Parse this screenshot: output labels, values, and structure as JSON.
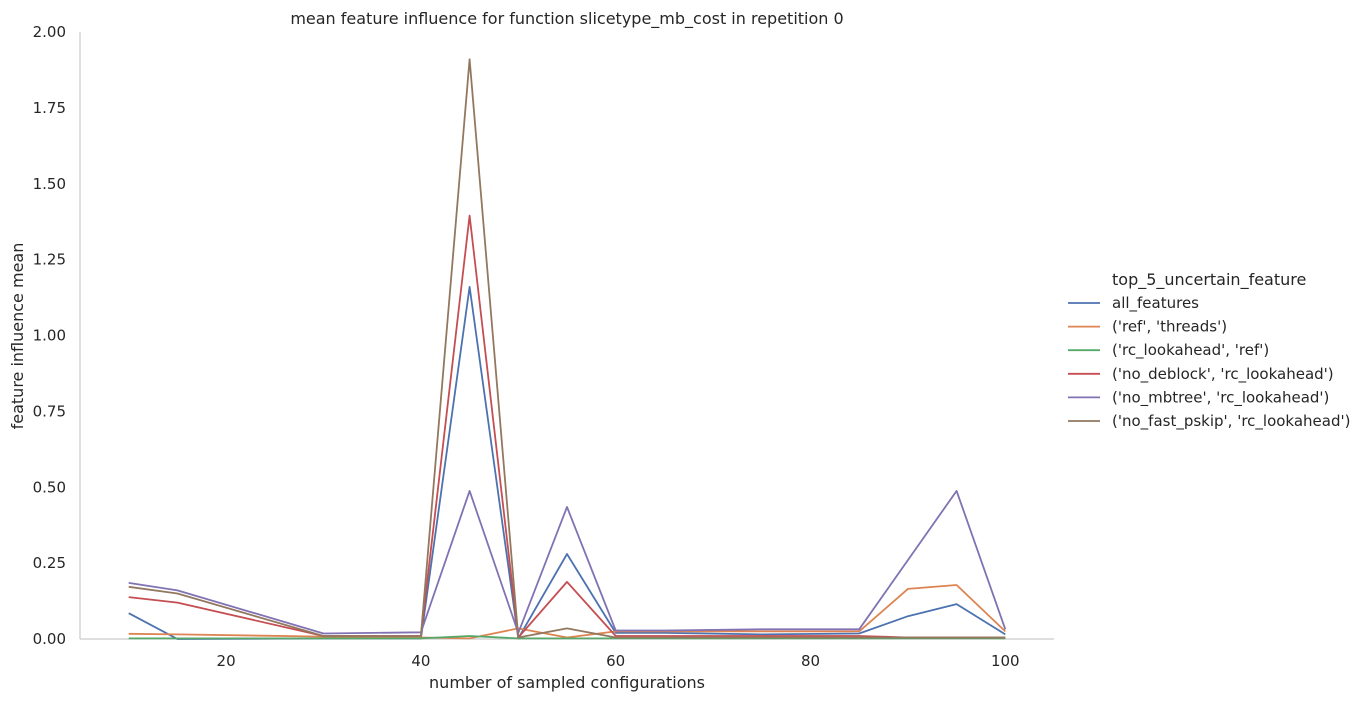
{
  "chart_data": {
    "type": "line",
    "title": "mean feature influence for function slicetype_mb_cost in repetition 0",
    "xlabel": "number of sampled configurations",
    "ylabel": "feature influence mean",
    "xlim": [
      5,
      105
    ],
    "ylim": [
      0,
      2
    ],
    "xticks": [
      "20",
      "40",
      "60",
      "80",
      "100"
    ],
    "xtick_values": [
      20,
      40,
      60,
      80,
      100
    ],
    "yticks": [
      "0.00",
      "0.25",
      "0.50",
      "0.75",
      "1.00",
      "1.25",
      "1.50",
      "1.75",
      "2.00"
    ],
    "ytick_values": [
      0,
      0.25,
      0.5,
      0.75,
      1.0,
      1.25,
      1.5,
      1.75,
      2.0
    ],
    "grid": false,
    "legend_title": "top_5_uncertain_feature",
    "legend_position": "right",
    "x": [
      10,
      15,
      30,
      40,
      45,
      50,
      55,
      60,
      65,
      75,
      85,
      90,
      95,
      100
    ],
    "series": [
      {
        "name": "all_features",
        "color": "#4c72b0",
        "values": [
          0.085,
          0.0,
          0.002,
          0.002,
          1.16,
          0.002,
          0.28,
          0.02,
          0.02,
          0.015,
          0.018,
          0.075,
          0.115,
          0.015
        ]
      },
      {
        "name": "('ref', 'threads')",
        "color": "#dd8452",
        "values": [
          0.017,
          0.015,
          0.008,
          0.005,
          0.002,
          0.035,
          0.005,
          0.025,
          0.025,
          0.025,
          0.025,
          0.165,
          0.178,
          0.025
        ]
      },
      {
        "name": "('rc_lookahead', 'ref')",
        "color": "#55a868",
        "values": [
          0.002,
          0.002,
          0.002,
          0.002,
          0.01,
          0.002,
          0.002,
          0.002,
          0.002,
          0.002,
          0.002,
          0.002,
          0.002,
          0.002
        ]
      },
      {
        "name": "('no_deblock', 'rc_lookahead')",
        "color": "#c44e52",
        "values": [
          0.138,
          0.12,
          0.01,
          0.01,
          1.395,
          0.005,
          0.188,
          0.01,
          0.01,
          0.01,
          0.01,
          0.005,
          0.005,
          0.005
        ]
      },
      {
        "name": "('no_mbtree', 'rc_lookahead')",
        "color": "#8172b3",
        "values": [
          0.185,
          0.16,
          0.018,
          0.022,
          0.488,
          0.02,
          0.435,
          0.028,
          0.028,
          0.032,
          0.032,
          0.26,
          0.488,
          0.032
        ]
      },
      {
        "name": "('no_fast_pskip', 'rc_lookahead')",
        "color": "#937860",
        "values": [
          0.172,
          0.15,
          0.01,
          0.01,
          1.91,
          0.005,
          0.035,
          0.005,
          0.005,
          0.005,
          0.005,
          0.005,
          0.005,
          0.005
        ]
      }
    ]
  }
}
